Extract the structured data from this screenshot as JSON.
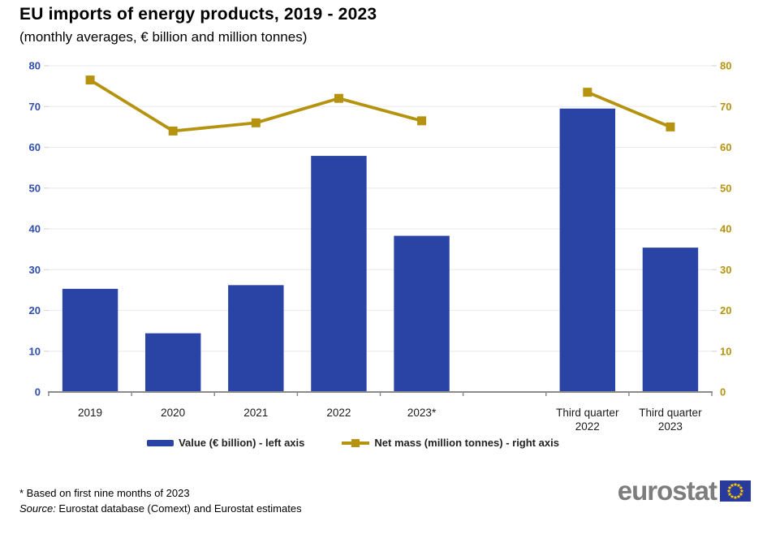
{
  "title": "EU imports of energy products, 2019 - 2023",
  "subtitle": "(monthly averages, € billion and million tonnes)",
  "chart_data": {
    "type": "bar",
    "combo": "bar + line, dual axis",
    "categories": [
      "2019",
      "2020",
      "2021",
      "2022",
      "2023*",
      "Third quarter 2022",
      "Third quarter 2023"
    ],
    "category_lines": [
      [
        "2019"
      ],
      [
        "2020"
      ],
      [
        "2021"
      ],
      [
        "2022"
      ],
      [
        "2023*"
      ],
      [
        "Third quarter",
        "2022"
      ],
      [
        "Third quarter",
        "2023"
      ]
    ],
    "series": [
      {
        "name": "Value (€ billion) - left axis",
        "type": "bar",
        "axis": "left",
        "color": "#2A44A5",
        "values": [
          25.3,
          14.4,
          26.2,
          57.9,
          38.3,
          69.5,
          35.4
        ]
      },
      {
        "name": "Net mass (million tonnes) - right axis",
        "type": "line",
        "axis": "right",
        "color": "#B5930F",
        "values": [
          76.5,
          64.0,
          66.0,
          72.0,
          66.5,
          73.5,
          65.0
        ],
        "segments": [
          [
            0,
            4
          ],
          [
            5,
            6
          ]
        ]
      }
    ],
    "left_axis": {
      "min": 0,
      "max": 80,
      "step": 10,
      "tick_labels": [
        "0",
        "10",
        "20",
        "30",
        "40",
        "50",
        "60",
        "70",
        "80"
      ],
      "color": "#2F4DAD"
    },
    "right_axis": {
      "min": 0,
      "max": 80,
      "step": 10,
      "tick_labels": [
        "0",
        "10",
        "20",
        "30",
        "40",
        "50",
        "60",
        "70",
        "80"
      ],
      "color": "#B5930F"
    },
    "layout": {
      "slots": 8,
      "gap_slot": 5,
      "grid": "horizontal",
      "legend_position": "bottom"
    }
  },
  "footnotes": {
    "asterisk": "* Based on first nine months of 2023",
    "source_label": "Source:",
    "source_text": " Eurostat database (Comext) and Eurostat estimates"
  },
  "logo": {
    "text": "eurostat",
    "flag_blue": "#283A9B",
    "star_yellow": "#FFCC00"
  }
}
